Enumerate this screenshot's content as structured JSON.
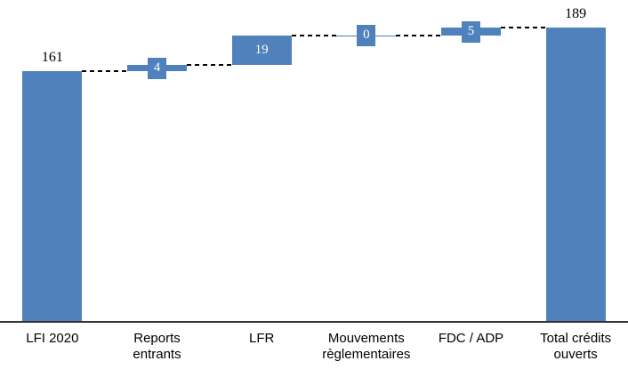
{
  "chart_data": {
    "type": "waterfall",
    "title": "",
    "legend": false,
    "grid": false,
    "background_color": "#ffffff",
    "bar_color": "#4f81bd",
    "connector_color": "#000000",
    "axis_color": "#333333",
    "value_label_color": "#000000",
    "inner_label_color": "#ffffff",
    "ylim": [
      0,
      207
    ],
    "categories": [
      "LFI 2020",
      "Reports entrants",
      "LFR",
      "Mouvements règlementaires",
      "FDC / ADP",
      "Total crédits ouverts"
    ],
    "columns": [
      {
        "label": "LFI 2020",
        "label_lines": [
          "LFI 2020"
        ],
        "value": 161,
        "display": "161",
        "role": "total",
        "label_style": "above"
      },
      {
        "label": "Reports entrants",
        "label_lines": [
          "Reports",
          "entrants"
        ],
        "value": 4,
        "display": "4",
        "role": "delta",
        "label_style": "boxed"
      },
      {
        "label": "LFR",
        "label_lines": [
          "LFR"
        ],
        "value": 19,
        "display": "19",
        "role": "delta",
        "label_style": "boxed"
      },
      {
        "label": "Mouvements règlementaires",
        "label_lines": [
          "Mouvements",
          "règlementaires"
        ],
        "value": 0,
        "display": "0",
        "role": "delta",
        "label_style": "boxed"
      },
      {
        "label": "FDC / ADP",
        "label_lines": [
          "FDC / ADP"
        ],
        "value": 5,
        "display": "5",
        "role": "delta",
        "label_style": "boxed"
      },
      {
        "label": "Total crédits ouverts",
        "label_lines": [
          "Total crédits",
          "ouverts"
        ],
        "value": 189,
        "display": "189",
        "role": "total",
        "label_style": "above"
      }
    ]
  }
}
